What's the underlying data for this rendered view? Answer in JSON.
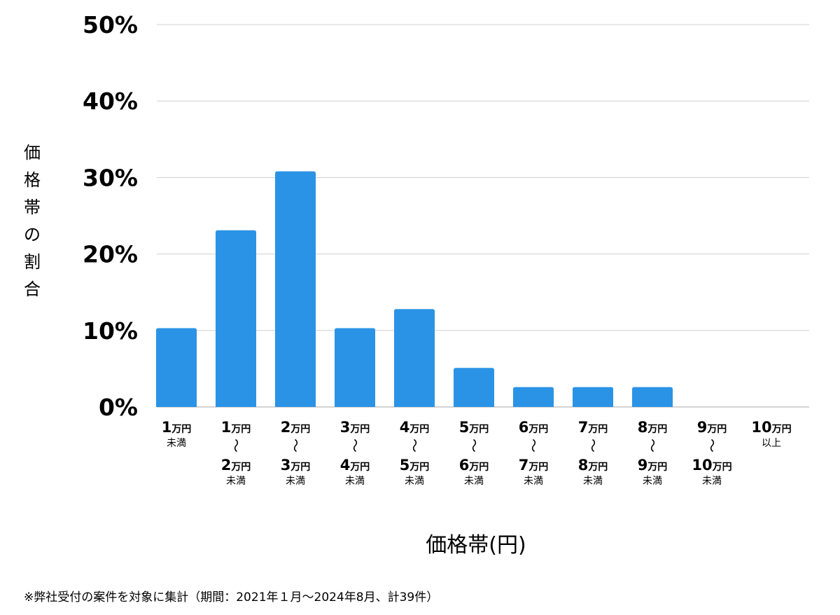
{
  "chart_data": {
    "type": "bar",
    "title": "",
    "xlabel": "価格帯(円)",
    "ylabel": "価格帯の割合",
    "ylim": [
      0,
      50
    ],
    "yticks": [
      "0%",
      "10%",
      "20%",
      "30%",
      "40%",
      "50%"
    ],
    "ytick_values": [
      0,
      10,
      20,
      30,
      40,
      50
    ],
    "grid": true,
    "bar_color": "#2a93e6",
    "grid_color": "#d0d0d0",
    "unit": "万円",
    "tilde": "〜",
    "categories": [
      {
        "from": "1",
        "to": "",
        "suffix": "未満"
      },
      {
        "from": "1",
        "to": "2",
        "suffix": "未満"
      },
      {
        "from": "2",
        "to": "3",
        "suffix": "未満"
      },
      {
        "from": "3",
        "to": "4",
        "suffix": "未満"
      },
      {
        "from": "4",
        "to": "5",
        "suffix": "未満"
      },
      {
        "from": "5",
        "to": "6",
        "suffix": "未満"
      },
      {
        "from": "6",
        "to": "7",
        "suffix": "未満"
      },
      {
        "from": "7",
        "to": "8",
        "suffix": "未満"
      },
      {
        "from": "8",
        "to": "9",
        "suffix": "未満"
      },
      {
        "from": "9",
        "to": "10",
        "suffix": "未満"
      },
      {
        "from": "10",
        "to": "",
        "suffix": "以上"
      }
    ],
    "values": [
      10.3,
      23.1,
      30.8,
      10.3,
      12.8,
      5.1,
      2.6,
      2.6,
      2.6,
      0,
      0
    ],
    "footnote": "※弊社受付の案件を対象に集計（期間：2021年１月〜2024年8月、計39件）"
  }
}
